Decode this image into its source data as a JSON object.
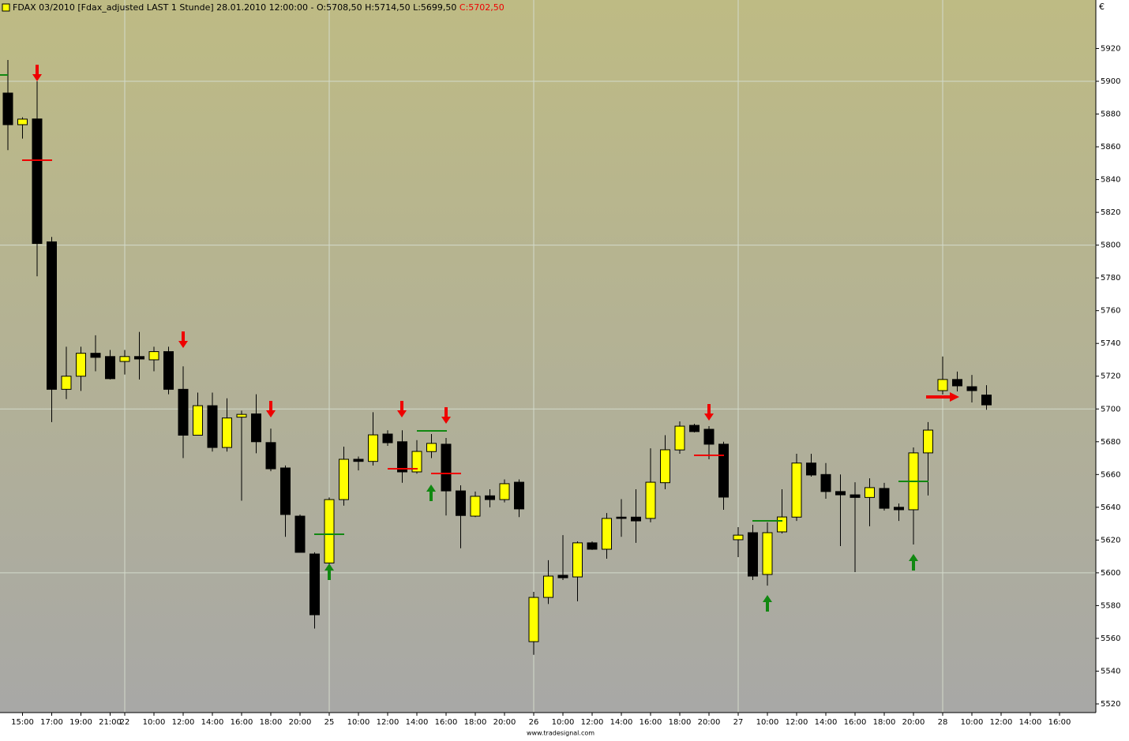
{
  "chart_data": {
    "type": "candlestick",
    "title": "FDAX 03/2010 [Fdax_adjusted LAST 1 Stunde] 28.01.2010 12:00:00 - O:5708,50 H:5714,50 L:5699,50",
    "title_close": "C:5702,50",
    "y_unit": "€",
    "footer": "www.tradesignal.com",
    "categories": [
      null,
      "15:00",
      null,
      "17:00",
      null,
      "19:00",
      null,
      "21:00",
      "22",
      null,
      "10:00",
      null,
      "12:00",
      null,
      "14:00",
      null,
      "16:00",
      null,
      "18:00",
      null,
      "20:00",
      null,
      "25",
      null,
      "10:00",
      null,
      "12:00",
      null,
      "14:00",
      null,
      "16:00",
      null,
      "18:00",
      null,
      "20:00",
      null,
      "26",
      null,
      "10:00",
      null,
      "12:00",
      null,
      "14:00",
      null,
      "16:00",
      null,
      "18:00",
      null,
      "20:00",
      null,
      "27",
      null,
      "10:00",
      null,
      "12:00",
      null,
      "14:00",
      null,
      "16:00",
      null,
      "18:00",
      null,
      "20:00",
      null,
      "28",
      null,
      "10:00",
      null,
      "12:00",
      null,
      "14:00",
      null,
      "16:00",
      null,
      null
    ],
    "open": [
      5892.8,
      5873.5,
      5877,
      5802,
      5712,
      5720,
      5734,
      5732,
      5729,
      5732,
      5730,
      5735,
      5712,
      5684,
      5702,
      5676.5,
      5695,
      5697,
      5679.5,
      5664,
      5634.6,
      5611.5,
      5606,
      5644.7,
      5669.3,
      5668,
      5684.7,
      5680,
      5661.6,
      5674,
      5678.5,
      5650,
      5634.6,
      5647,
      5644.7,
      5655.3,
      5558,
      5585,
      5598.5,
      5597.5,
      5618.3,
      5614.4,
      5634,
      5634,
      5633.2,
      5655,
      5675,
      5690,
      5687.6,
      5678.5,
      5620.2,
      5624.5,
      5599,
      5625,
      5634,
      5667,
      5660,
      5649.6,
      5647.6,
      5646,
      5651.5,
      5640,
      5638.5,
      5673.2,
      5711.2,
      5718,
      5713.6,
      5708.5,
      null,
      null,
      null,
      null,
      null,
      null,
      null
    ],
    "high": [
      5913,
      5878,
      5900,
      5805,
      5738,
      5738,
      5745,
      5736,
      5736,
      5747,
      5738,
      5738,
      5726,
      5710,
      5710,
      5706.5,
      5699,
      5709,
      5688,
      5665.5,
      5635.6,
      5612.5,
      5646,
      5677,
      5671,
      5698,
      5687,
      5687,
      5681,
      5684.7,
      5682.3,
      5653.4,
      5649.6,
      5651,
      5657,
      5657,
      5588.4,
      5607.7,
      5623,
      5619.2,
      5619.2,
      5636.5,
      5645,
      5651,
      5676,
      5684,
      5692.4,
      5691,
      5689.5,
      5680,
      5627.9,
      5629.3,
      5630.8,
      5651,
      5672.7,
      5672.7,
      5667,
      5660,
      5655.3,
      5657.7,
      5654.9,
      5642.3,
      5676.5,
      5692,
      5732,
      5722.8,
      5720.8,
      5714.5,
      null,
      null,
      null,
      null,
      null,
      null,
      null
    ],
    "low": [
      5858,
      5865,
      5781,
      5692,
      5706,
      5711,
      5723,
      5718,
      5721,
      5718,
      5723,
      5709,
      5670,
      5684,
      5674,
      5674,
      5644,
      5673,
      5662,
      5622,
      5612.5,
      5566,
      5605,
      5641,
      5662.5,
      5665.5,
      5677.5,
      5655,
      5660.5,
      5670,
      5635,
      5615,
      5634,
      5640,
      5643,
      5634,
      5550,
      5581,
      5595.6,
      5582.6,
      5614,
      5608.6,
      5622,
      5618.3,
      5630.8,
      5651,
      5672.7,
      5685.7,
      5669.3,
      5638.5,
      5609.6,
      5595.6,
      5592.2,
      5624,
      5631.7,
      5658.7,
      5645.2,
      5616.3,
      5600.4,
      5628.4,
      5638,
      5631.7,
      5617.3,
      5647.2,
      5708.8,
      5710.7,
      5704,
      5699.5,
      null,
      null,
      null,
      null,
      null,
      null,
      null
    ],
    "close": [
      5873.5,
      5876.9,
      5801,
      5712,
      5720,
      5734,
      5731.5,
      5718.5,
      5732,
      5730.5,
      5735,
      5712,
      5684,
      5702,
      5676.5,
      5694.5,
      5696.7,
      5680,
      5663.5,
      5635.6,
      5612.5,
      5574.4,
      5644.7,
      5669.3,
      5668,
      5684.2,
      5679.4,
      5661.6,
      5674.1,
      5679,
      5650,
      5635,
      5646.7,
      5644.7,
      5654.4,
      5639,
      5585,
      5598,
      5597,
      5618.3,
      5614.4,
      5633.2,
      5633.2,
      5631.7,
      5655.3,
      5675.1,
      5689.5,
      5686.2,
      5678.5,
      5646.2,
      5623,
      5598,
      5624.5,
      5634.1,
      5667,
      5659.7,
      5649.6,
      5647.6,
      5646,
      5652,
      5639.4,
      5638.5,
      5673.2,
      5687.1,
      5718,
      5714.1,
      5711.2,
      5702.5,
      null,
      null,
      null,
      null,
      null,
      null,
      null
    ],
    "up_color": "#ffff00",
    "down_color": "#000000",
    "ylim": [
      5514.7,
      5949.6
    ],
    "yticks": [
      5520,
      5540,
      5560,
      5580,
      5600,
      5620,
      5640,
      5660,
      5680,
      5700,
      5720,
      5740,
      5760,
      5780,
      5800,
      5820,
      5840,
      5860,
      5880,
      5900,
      5920
    ],
    "ygrid": [
      5600,
      5700,
      5800,
      5900
    ],
    "xgrid": [
      8,
      22,
      36,
      50,
      64
    ]
  }
}
